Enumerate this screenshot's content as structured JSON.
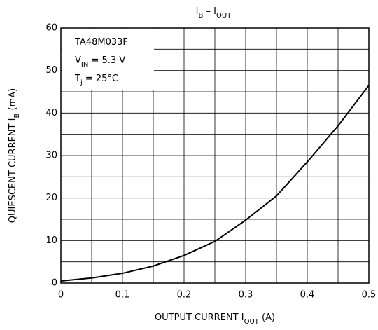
{
  "chart_data": {
    "type": "line",
    "title": [
      {
        "text": "I"
      },
      {
        "text": "B",
        "sub": true
      },
      {
        "text": " – "
      },
      {
        "text": "I"
      },
      {
        "text": "OUT",
        "sub": true
      }
    ],
    "xlabel": [
      {
        "text": "OUTPUT CURRENT   "
      },
      {
        "text": "I"
      },
      {
        "text": "OUT",
        "sub": true
      },
      {
        "text": "   (A)"
      }
    ],
    "ylabel": [
      {
        "text": "QUIESCENT CURRENT   "
      },
      {
        "text": "I"
      },
      {
        "text": "B",
        "sub": true
      },
      {
        "text": "   (mA)"
      }
    ],
    "annotations": [
      [
        {
          "text": "TA48M033F"
        }
      ],
      [
        {
          "text": "V"
        },
        {
          "text": "IN",
          "sub": true
        },
        {
          "text": " = 5.3 V"
        }
      ],
      [
        {
          "text": "T"
        },
        {
          "text": "j",
          "sub": true
        },
        {
          "text": " = 25°C"
        }
      ]
    ],
    "x": [
      0,
      0.05,
      0.1,
      0.15,
      0.2,
      0.25,
      0.3,
      0.35,
      0.4,
      0.45,
      0.5
    ],
    "series": [
      {
        "color": "#000000",
        "values": [
          0.5,
          1.2,
          2.3,
          4.0,
          6.5,
          9.8,
          14.8,
          20.5,
          28.5,
          37.0,
          46.5
        ]
      }
    ],
    "xlim": [
      0,
      0.5
    ],
    "xticks": [
      0,
      0.1,
      0.2,
      0.3,
      0.4,
      0.5
    ],
    "xminor": [
      0.05,
      0.15,
      0.25,
      0.35,
      0.45
    ],
    "ylim": [
      0,
      60
    ],
    "yticks": [
      0,
      10,
      20,
      30,
      40,
      50,
      60
    ],
    "yminor": [
      5,
      15,
      25,
      35,
      45,
      55
    ],
    "grid": true
  }
}
